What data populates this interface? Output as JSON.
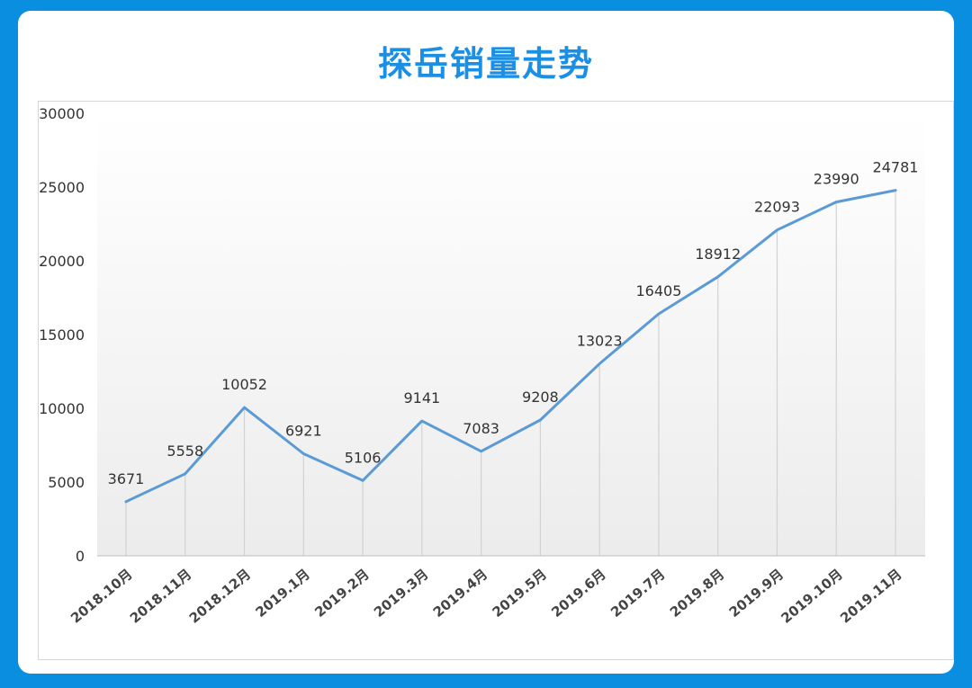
{
  "header": {
    "title": "探岳销量走势"
  },
  "chart_data": {
    "type": "line",
    "title": "探岳销量走势",
    "categories": [
      "2018.10月",
      "2018.11月",
      "2018.12月",
      "2019.1月",
      "2019.2月",
      "2019.3月",
      "2019.4月",
      "2019.5月",
      "2019.6月",
      "2019.7月",
      "2019.8月",
      "2019.9月",
      "2019.10月",
      "2019.11月"
    ],
    "series": [
      {
        "values": [
          3671,
          5558,
          10052,
          6921,
          5106,
          9141,
          7083,
          9208,
          13023,
          16405,
          18912,
          22093,
          23990,
          24781
        ]
      }
    ],
    "ylim": [
      0,
      30000
    ],
    "yticks": [
      0,
      5000,
      10000,
      15000,
      20000,
      25000,
      30000
    ],
    "grid": "vertical-drop-lines",
    "legend": "none",
    "colors": {
      "line": "#5b9bd5",
      "title": "#1a8fe3",
      "frame": "#0a8ee0"
    }
  }
}
